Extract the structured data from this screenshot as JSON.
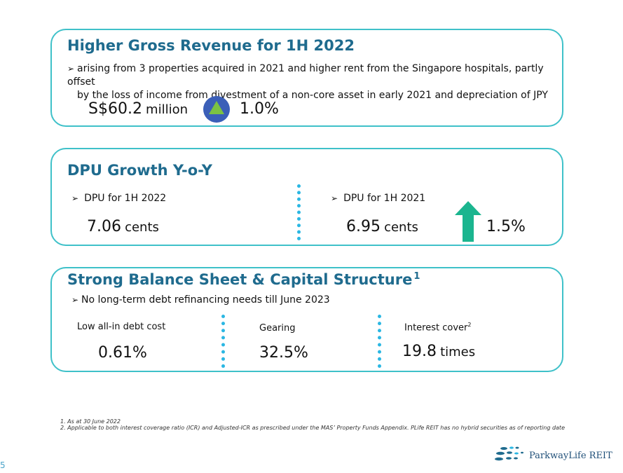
{
  "revenue_card": {
    "title": "Higher Gross Revenue for 1H 2022",
    "bullet_line1": "arising from 3 properties acquired in 2021 and higher rent from the Singapore hospitals, partly offset",
    "bullet_line2": "by the loss of income from divestment of a non-core asset in early 2021 and depreciation of JPY",
    "amount": "S$60.2",
    "amount_unit": "million",
    "change": "1.0%",
    "change_icon": "up-triangle-icon",
    "colors": {
      "icon_circle": "#3b5fb8",
      "icon_triangle": "#7cc242"
    }
  },
  "dpu_card": {
    "title": "DPU Growth Y-o-Y",
    "left_label": "DPU for 1H 2022",
    "left_value": "7.06",
    "left_unit": "cents",
    "right_label": "DPU for 1H 2021",
    "right_value": "6.95",
    "right_unit": "cents",
    "growth": "1.5%",
    "growth_icon": "up-arrow-icon",
    "colors": {
      "arrow": "#1bb58f"
    }
  },
  "balance_card": {
    "title": "Strong Balance Sheet & Capital Structure",
    "title_sup": "1",
    "bullet": "No long-term debt refinancing needs till June 2023",
    "metrics": [
      {
        "label": "Low all-in debt cost",
        "sup": "",
        "value": "0.61%",
        "unit": ""
      },
      {
        "label": "Gearing",
        "sup": "",
        "value": "32.5%",
        "unit": ""
      },
      {
        "label": "Interest cover",
        "sup": "2",
        "value": "19.8",
        "unit": "times"
      }
    ]
  },
  "footnotes": [
    "1. As at 30 June 2022",
    "2. Applicable to both interest coverage ratio (ICR) and Adjusted-ICR as prescribed under the MAS’ Property Funds Appendix. PLife REIT has no hybrid securities as of reporting date"
  ],
  "page_number": "5",
  "logo_text": "ParkwayLife REIT",
  "colors": {
    "accent": "#3fc1c9",
    "title": "#1f6b8e",
    "divider": "#2bb7e3"
  }
}
